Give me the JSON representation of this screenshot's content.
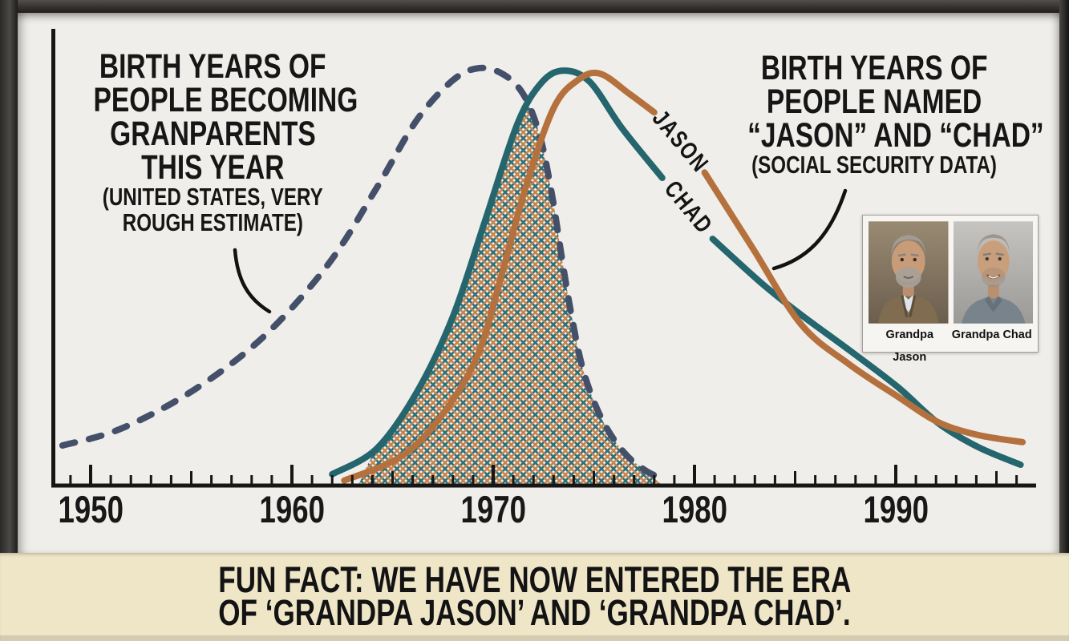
{
  "chart_data": {
    "type": "line",
    "title_left": {
      "lines_big": [
        "BIRTH YEARS OF",
        "PEOPLE BECOMING",
        "GRANPARENTS",
        "THIS YEAR"
      ],
      "lines_small": [
        "(UNITED STATES, VERY",
        "ROUGH ESTIMATE)"
      ]
    },
    "title_right": {
      "lines_big": [
        "BIRTH YEARS OF",
        "PEOPLE NAMED",
        "“JASON” AND “CHAD”"
      ],
      "lines_small": [
        "(SOCIAL SECURITY DATA)"
      ]
    },
    "xlabel": "",
    "ylabel": "",
    "ylim": [
      0,
      1
    ],
    "x_axis": {
      "min": 1948,
      "max": 1997,
      "decade_labels": [
        1950,
        1960,
        1970,
        1980,
        1990
      ]
    },
    "series": [
      {
        "name": "grandparents-estimate",
        "style": "dashed",
        "color": "#44506a",
        "points": [
          [
            1948.6,
            0.096
          ],
          [
            1951.5,
            0.136
          ],
          [
            1955.1,
            0.228
          ],
          [
            1958.6,
            0.357
          ],
          [
            1961.8,
            0.53
          ],
          [
            1964.2,
            0.712
          ],
          [
            1966.2,
            0.875
          ],
          [
            1968.0,
            0.971
          ],
          [
            1969.3,
            1.0
          ],
          [
            1970.5,
            0.985
          ],
          [
            1971.5,
            0.937
          ],
          [
            1972.3,
            0.841
          ],
          [
            1972.9,
            0.702
          ],
          [
            1973.4,
            0.549
          ],
          [
            1973.9,
            0.405
          ],
          [
            1974.5,
            0.271
          ],
          [
            1975.4,
            0.159
          ],
          [
            1976.5,
            0.079
          ],
          [
            1977.6,
            0.035
          ],
          [
            1978.5,
            0.015
          ]
        ]
      },
      {
        "name": "jason",
        "label": "JASON",
        "style": "solid",
        "color": "#b5713d",
        "label_gap": [
          1978.0,
          1980.5
        ],
        "points": [
          [
            1962.6,
            0.012
          ],
          [
            1965.4,
            0.069
          ],
          [
            1967.4,
            0.165
          ],
          [
            1969.2,
            0.309
          ],
          [
            1970.4,
            0.501
          ],
          [
            1971.6,
            0.712
          ],
          [
            1973.0,
            0.904
          ],
          [
            1974.2,
            0.971
          ],
          [
            1975.3,
            0.987
          ],
          [
            1976.8,
            0.937
          ],
          [
            1978.0,
            0.894
          ],
          [
            1980.5,
            0.75
          ],
          [
            1982.9,
            0.568
          ],
          [
            1985.3,
            0.386
          ],
          [
            1987.7,
            0.29
          ],
          [
            1990.1,
            0.213
          ],
          [
            1992.1,
            0.152
          ],
          [
            1994.1,
            0.121
          ],
          [
            1996.3,
            0.104
          ]
        ]
      },
      {
        "name": "chad",
        "label": "CHAD",
        "style": "solid",
        "color": "#24656e",
        "label_gap": [
          1978.4,
          1980.9
        ],
        "points": [
          [
            1962.0,
            0.027
          ],
          [
            1964.2,
            0.088
          ],
          [
            1966.2,
            0.223
          ],
          [
            1968.0,
            0.405
          ],
          [
            1969.6,
            0.635
          ],
          [
            1971.2,
            0.866
          ],
          [
            1972.4,
            0.965
          ],
          [
            1973.5,
            0.994
          ],
          [
            1974.8,
            0.967
          ],
          [
            1976.4,
            0.856
          ],
          [
            1978.4,
            0.737
          ],
          [
            1980.9,
            0.591
          ],
          [
            1983.4,
            0.482
          ],
          [
            1985.3,
            0.409
          ],
          [
            1987.7,
            0.324
          ],
          [
            1990.1,
            0.236
          ],
          [
            1992.1,
            0.15
          ],
          [
            1994.1,
            0.092
          ],
          [
            1996.2,
            0.05
          ]
        ]
      }
    ],
    "hatch_region": {
      "colors": [
        "#2e7077",
        "#c5824d"
      ],
      "points": [
        [
          1963.3,
          0.0
        ],
        [
          1964.2,
          0.088
        ],
        [
          1966.2,
          0.223
        ],
        [
          1968.0,
          0.405
        ],
        [
          1969.6,
          0.635
        ],
        [
          1971.2,
          0.866
        ],
        [
          1971.8,
          0.905
        ],
        [
          1972.3,
          0.841
        ],
        [
          1972.9,
          0.702
        ],
        [
          1973.4,
          0.549
        ],
        [
          1973.9,
          0.405
        ],
        [
          1974.5,
          0.271
        ],
        [
          1975.4,
          0.159
        ],
        [
          1976.5,
          0.079
        ],
        [
          1977.6,
          0.035
        ],
        [
          1978.4,
          0.0
        ]
      ]
    }
  },
  "photos": {
    "items": [
      {
        "label": "Grandpa Jason"
      },
      {
        "label": "Grandpa Chad"
      }
    ]
  },
  "caption": {
    "line1": "FUN FACT: WE HAVE NOW ENTERED THE ERA",
    "line2": "OF ‘GRANDPA JASON’ AND ‘GRANDPA CHAD’."
  }
}
